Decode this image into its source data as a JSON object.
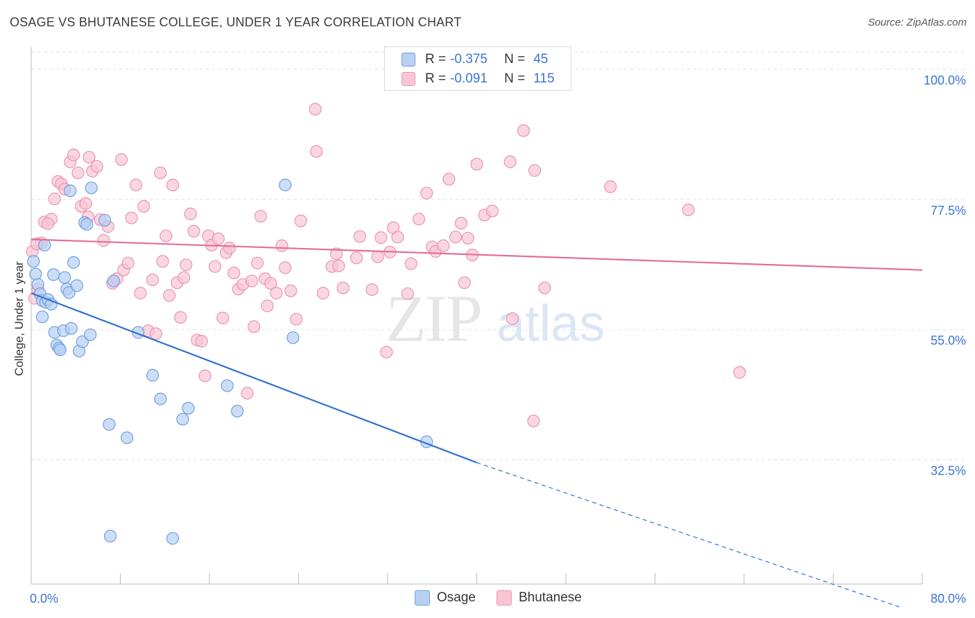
{
  "title": "OSAGE VS BHUTANESE COLLEGE, UNDER 1 YEAR CORRELATION CHART",
  "source": "Source: ZipAtlas.com",
  "legend": {
    "osage": {
      "r_label": "R =",
      "r_value": "-0.375",
      "n_label": "N =",
      "n_value": "45"
    },
    "bhutanese": {
      "r_label": "R =",
      "r_value": "-0.091",
      "n_label": "N =",
      "n_value": "115"
    }
  },
  "bottom_legend": {
    "osage": "Osage",
    "bhutanese": "Bhutanese"
  },
  "colors": {
    "osage_fill": "#b7d0f3",
    "osage_stroke": "#6f9fdc",
    "osage_line": "#2f6fcf",
    "bhutanese_fill": "#f8c5d4",
    "bhutanese_stroke": "#e995b0",
    "bhutanese_line": "#e46c95",
    "grid": "#e2e2e2",
    "tick_text": "#3b74d4"
  },
  "chart_data": {
    "type": "scatter",
    "title": "OSAGE VS BHUTANESE COLLEGE, UNDER 1 YEAR CORRELATION CHART",
    "xlabel": "",
    "ylabel": "College, Under 1 year",
    "xlim": [
      0,
      80
    ],
    "ylim": [
      11,
      103
    ],
    "x_tick_labels": [
      "0.0%",
      "80.0%"
    ],
    "y_ticks": [
      32.5,
      55.0,
      77.5,
      100.0
    ],
    "y_tick_labels": [
      "32.5%",
      "55.0%",
      "77.5%",
      "100.0%"
    ],
    "grid": true,
    "legend_position": "top-center",
    "series": [
      {
        "name": "Osage",
        "points": [
          [
            0.2,
            66.8
          ],
          [
            0.4,
            64.6
          ],
          [
            0.6,
            62.8
          ],
          [
            0.8,
            61.2
          ],
          [
            1.0,
            60.0
          ],
          [
            1.3,
            59.7
          ],
          [
            1.5,
            60.2
          ],
          [
            1.8,
            59.4
          ],
          [
            1.2,
            69.6
          ],
          [
            2.0,
            64.5
          ],
          [
            1.0,
            57.2
          ],
          [
            2.1,
            54.5
          ],
          [
            2.3,
            52.3
          ],
          [
            2.5,
            51.8
          ],
          [
            2.6,
            51.5
          ],
          [
            2.9,
            54.8
          ],
          [
            3.0,
            64.0
          ],
          [
            3.2,
            62.0
          ],
          [
            3.4,
            61.4
          ],
          [
            3.5,
            79.0
          ],
          [
            3.6,
            55.2
          ],
          [
            3.8,
            66.6
          ],
          [
            4.1,
            62.6
          ],
          [
            4.3,
            51.3
          ],
          [
            4.6,
            52.9
          ],
          [
            4.8,
            73.5
          ],
          [
            5.0,
            73.2
          ],
          [
            5.3,
            54.1
          ],
          [
            5.4,
            79.5
          ],
          [
            6.6,
            73.9
          ],
          [
            7.4,
            63.4
          ],
          [
            9.6,
            54.5
          ],
          [
            10.9,
            47.1
          ],
          [
            11.6,
            43.0
          ],
          [
            13.6,
            39.5
          ],
          [
            14.1,
            41.4
          ],
          [
            7.0,
            38.6
          ],
          [
            8.6,
            36.3
          ],
          [
            17.6,
            45.3
          ],
          [
            18.5,
            40.9
          ],
          [
            22.8,
            80.0
          ],
          [
            23.5,
            53.6
          ],
          [
            35.5,
            35.6
          ],
          [
            7.1,
            19.3
          ],
          [
            12.7,
            18.9
          ]
        ],
        "trend_line": {
          "x": [
            0.0,
            40.0
          ],
          "y": [
            61.3,
            32.0
          ],
          "dashed_extension": {
            "x": [
              40.0,
              78.0
            ],
            "y": [
              32.0,
              7.0
            ]
          }
        }
      },
      {
        "name": "Bhutanese",
        "points": [
          [
            0.3,
            60.4
          ],
          [
            0.6,
            62.0
          ],
          [
            0.9,
            70.0
          ],
          [
            1.2,
            73.6
          ],
          [
            1.8,
            74.1
          ],
          [
            2.1,
            77.6
          ],
          [
            2.4,
            80.6
          ],
          [
            2.7,
            80.2
          ],
          [
            3.0,
            79.3
          ],
          [
            3.5,
            84.0
          ],
          [
            3.8,
            85.2
          ],
          [
            4.2,
            82.1
          ],
          [
            4.5,
            76.3
          ],
          [
            4.9,
            76.8
          ],
          [
            5.2,
            84.8
          ],
          [
            5.5,
            82.4
          ],
          [
            5.9,
            83.2
          ],
          [
            6.2,
            74.0
          ],
          [
            6.5,
            70.4
          ],
          [
            6.9,
            72.8
          ],
          [
            7.3,
            63.0
          ],
          [
            7.7,
            63.8
          ],
          [
            8.1,
            84.4
          ],
          [
            8.3,
            65.3
          ],
          [
            8.7,
            66.5
          ],
          [
            9.0,
            74.3
          ],
          [
            9.4,
            80.0
          ],
          [
            9.8,
            61.3
          ],
          [
            10.1,
            76.3
          ],
          [
            10.5,
            54.8
          ],
          [
            10.9,
            63.6
          ],
          [
            11.2,
            54.3
          ],
          [
            11.6,
            82.1
          ],
          [
            11.8,
            66.8
          ],
          [
            12.1,
            71.2
          ],
          [
            12.4,
            60.9
          ],
          [
            12.7,
            80.0
          ],
          [
            13.1,
            63.1
          ],
          [
            13.4,
            57.1
          ],
          [
            13.7,
            64.0
          ],
          [
            13.9,
            66.2
          ],
          [
            14.3,
            75.0
          ],
          [
            14.6,
            72.0
          ],
          [
            14.9,
            53.2
          ],
          [
            15.3,
            53.0
          ],
          [
            15.6,
            47.0
          ],
          [
            15.9,
            71.2
          ],
          [
            16.2,
            69.6
          ],
          [
            16.5,
            65.9
          ],
          [
            16.8,
            70.7
          ],
          [
            17.2,
            57.0
          ],
          [
            17.5,
            68.3
          ],
          [
            17.8,
            69.1
          ],
          [
            18.2,
            64.8
          ],
          [
            18.6,
            62.0
          ],
          [
            19.0,
            62.8
          ],
          [
            19.4,
            44.0
          ],
          [
            19.8,
            63.4
          ],
          [
            20.0,
            55.5
          ],
          [
            20.3,
            66.5
          ],
          [
            20.6,
            74.6
          ],
          [
            21.0,
            63.8
          ],
          [
            21.2,
            59.1
          ],
          [
            21.5,
            63.0
          ],
          [
            22.0,
            61.3
          ],
          [
            22.5,
            69.5
          ],
          [
            22.8,
            65.7
          ],
          [
            23.3,
            61.7
          ],
          [
            23.8,
            56.8
          ],
          [
            24.2,
            73.8
          ],
          [
            25.5,
            93.1
          ],
          [
            25.6,
            85.8
          ],
          [
            26.2,
            61.3
          ],
          [
            27.0,
            65.9
          ],
          [
            27.4,
            68.1
          ],
          [
            27.6,
            66.0
          ],
          [
            28.0,
            62.2
          ],
          [
            29.2,
            67.4
          ],
          [
            29.5,
            71.1
          ],
          [
            30.6,
            61.9
          ],
          [
            31.1,
            67.6
          ],
          [
            31.4,
            70.9
          ],
          [
            31.9,
            51.1
          ],
          [
            32.2,
            68.4
          ],
          [
            32.5,
            72.6
          ],
          [
            32.9,
            71.0
          ],
          [
            33.8,
            61.2
          ],
          [
            34.1,
            66.4
          ],
          [
            34.8,
            74.1
          ],
          [
            35.5,
            78.6
          ],
          [
            36.0,
            69.3
          ],
          [
            36.3,
            68.5
          ],
          [
            37.0,
            69.5
          ],
          [
            37.5,
            81.0
          ],
          [
            38.1,
            71.0
          ],
          [
            38.6,
            73.4
          ],
          [
            38.9,
            63.1
          ],
          [
            39.2,
            70.8
          ],
          [
            39.6,
            67.9
          ],
          [
            40.0,
            83.6
          ],
          [
            40.7,
            74.8
          ],
          [
            41.4,
            75.5
          ],
          [
            43.0,
            84.0
          ],
          [
            43.2,
            56.9
          ],
          [
            44.2,
            89.4
          ],
          [
            45.2,
            82.5
          ],
          [
            45.1,
            39.2
          ],
          [
            46.1,
            62.2
          ],
          [
            52.0,
            79.7
          ],
          [
            59.0,
            75.7
          ],
          [
            63.6,
            47.6
          ],
          [
            0.1,
            68.5
          ],
          [
            0.5,
            69.8
          ],
          [
            1.5,
            73.3
          ],
          [
            5.1,
            74.5
          ]
        ],
        "trend_line": {
          "x": [
            0.0,
            80.0
          ],
          "y": [
            70.6,
            65.3
          ]
        }
      }
    ]
  }
}
